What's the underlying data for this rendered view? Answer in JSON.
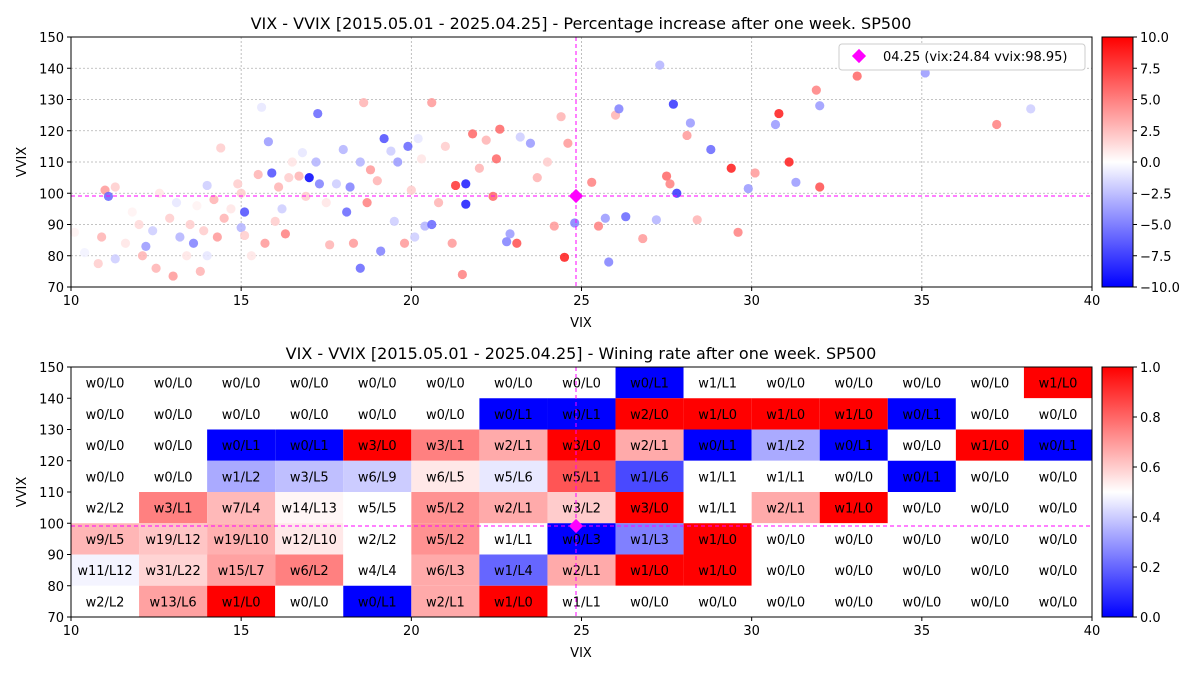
{
  "chart_data": [
    {
      "type": "scatter",
      "title": "VIX - VVIX [2015.05.01 - 2025.04.25]  - Percentage increase after one week. SP500",
      "xlabel": "VIX",
      "ylabel": "VVIX",
      "xlim": [
        10,
        40
      ],
      "ylim": [
        70,
        150
      ],
      "x_ticks": [
        "10",
        "15",
        "20",
        "25",
        "30",
        "35",
        "40"
      ],
      "y_ticks": [
        "70",
        "80",
        "90",
        "100",
        "110",
        "120",
        "130",
        "140",
        "150"
      ],
      "grid": true,
      "colorbar": {
        "range": [
          -10,
          10
        ],
        "ticks": [
          "10.0",
          "7.5",
          "5.0",
          "2.5",
          "0.0",
          "−2.5",
          "−5.0",
          "−7.5",
          "−10.0"
        ],
        "colormap": "bwr",
        "low_color": "#0000ff",
        "mid_color": "#ffffff",
        "high_color": "#ff0000"
      },
      "legend": {
        "placement": "top-right",
        "label": "04.25 (vix:24.84 vvix:98.95)"
      },
      "current_point": {
        "vix": 24.84,
        "vvix": 98.95,
        "color": "#ff00ff"
      },
      "points_sampled": [
        [
          10.1,
          87.5,
          0.5
        ],
        [
          10.4,
          81,
          -0.5
        ],
        [
          10.8,
          77.5,
          2
        ],
        [
          10.9,
          86,
          3
        ],
        [
          11,
          101,
          4
        ],
        [
          11.1,
          99,
          -6
        ],
        [
          11.3,
          79,
          -2
        ],
        [
          11.3,
          102,
          2
        ],
        [
          11.6,
          84,
          1
        ],
        [
          11.8,
          94,
          0.5
        ],
        [
          12,
          90,
          1.5
        ],
        [
          12.1,
          80,
          3
        ],
        [
          12.2,
          83,
          -4
        ],
        [
          12.4,
          88,
          -2
        ],
        [
          12.5,
          76,
          3
        ],
        [
          12.6,
          100,
          1
        ],
        [
          12.8,
          82,
          0
        ],
        [
          12.9,
          92,
          2
        ],
        [
          13,
          73.5,
          4
        ],
        [
          13.1,
          97,
          -1
        ],
        [
          13.2,
          86,
          -3
        ],
        [
          13.4,
          80,
          1
        ],
        [
          13.5,
          90,
          2
        ],
        [
          13.6,
          84,
          -5
        ],
        [
          13.7,
          96,
          0.5
        ],
        [
          13.8,
          75,
          3
        ],
        [
          13.9,
          88,
          2
        ],
        [
          14,
          80,
          -1
        ],
        [
          14,
          102.5,
          -2
        ],
        [
          14.2,
          98,
          3
        ],
        [
          14.3,
          86,
          4
        ],
        [
          14.4,
          114.5,
          2
        ],
        [
          14.5,
          92,
          3
        ],
        [
          14.7,
          95,
          1
        ],
        [
          14.8,
          82,
          0
        ],
        [
          14.9,
          103,
          2
        ],
        [
          15,
          89,
          -3
        ],
        [
          15,
          100,
          2
        ],
        [
          15.1,
          86.5,
          2
        ],
        [
          15.1,
          94,
          -7
        ],
        [
          15.3,
          80,
          1
        ],
        [
          15.5,
          106,
          3
        ],
        [
          15.6,
          127.5,
          -1
        ],
        [
          15.7,
          84,
          4
        ],
        [
          15.8,
          116.5,
          -4
        ],
        [
          15.9,
          106.5,
          -7
        ],
        [
          16,
          91,
          2
        ],
        [
          16.1,
          102,
          3
        ],
        [
          16.2,
          95,
          -2
        ],
        [
          16.3,
          87,
          5
        ],
        [
          16.4,
          105,
          2
        ],
        [
          16.5,
          110,
          1
        ],
        [
          16.7,
          105.5,
          3
        ],
        [
          16.8,
          113,
          -1
        ],
        [
          16.9,
          99,
          2
        ],
        [
          17,
          105,
          -10
        ],
        [
          17.1,
          86.5,
          0
        ],
        [
          17.2,
          110,
          -3
        ],
        [
          17.25,
          125.5,
          -6
        ],
        [
          17.3,
          103,
          -5
        ],
        [
          17.5,
          97,
          1
        ],
        [
          17.6,
          83.5,
          3
        ],
        [
          17.8,
          103,
          -2
        ],
        [
          18,
          114,
          -3
        ],
        [
          18.1,
          94,
          -6
        ],
        [
          18.2,
          102,
          -5
        ],
        [
          18.3,
          84,
          4
        ],
        [
          18.5,
          76,
          -6
        ],
        [
          18.5,
          110,
          -3
        ],
        [
          18.6,
          129,
          3
        ],
        [
          18.7,
          97,
          5
        ],
        [
          18.8,
          107.5,
          4
        ],
        [
          19,
          104,
          3
        ],
        [
          19.1,
          81.5,
          -5
        ],
        [
          19.2,
          117.5,
          -7
        ],
        [
          19.4,
          113.5,
          -2
        ],
        [
          19.5,
          91,
          -2
        ],
        [
          19.6,
          110,
          -4
        ],
        [
          19.8,
          84,
          4
        ],
        [
          19.9,
          115,
          -6
        ],
        [
          20,
          101,
          2
        ],
        [
          20.1,
          86,
          -2
        ],
        [
          20.2,
          117.5,
          -1
        ],
        [
          20.3,
          111,
          1
        ],
        [
          20.4,
          89.5,
          -3
        ],
        [
          20.6,
          90,
          -6
        ],
        [
          20.6,
          129,
          4
        ],
        [
          20.8,
          97,
          3
        ],
        [
          21,
          115,
          2
        ],
        [
          21.2,
          84,
          4
        ],
        [
          21.3,
          102.5,
          8
        ],
        [
          21.5,
          74,
          5
        ],
        [
          21.6,
          103,
          -9
        ],
        [
          21.6,
          96.5,
          -9
        ],
        [
          21.8,
          119,
          6
        ],
        [
          22,
          108,
          3
        ],
        [
          22.2,
          117,
          3
        ],
        [
          22.4,
          99,
          6
        ],
        [
          22.5,
          111,
          6
        ],
        [
          22.6,
          120.5,
          6
        ],
        [
          22.8,
          84.5,
          -5
        ],
        [
          22.9,
          87,
          -4
        ],
        [
          23.1,
          84,
          7
        ],
        [
          23.2,
          118,
          -2
        ],
        [
          23.5,
          116,
          -4
        ],
        [
          23.7,
          105,
          3
        ],
        [
          24,
          110,
          2
        ],
        [
          24.2,
          89.5,
          4
        ],
        [
          24.4,
          124.5,
          3
        ],
        [
          24.5,
          79.5,
          9
        ],
        [
          24.6,
          116,
          4
        ],
        [
          24.8,
          90.5,
          -5
        ],
        [
          25.3,
          103.5,
          5
        ],
        [
          25.5,
          89.5,
          5
        ],
        [
          25.7,
          92,
          -4
        ],
        [
          25.8,
          78,
          -5
        ],
        [
          26,
          125,
          3
        ],
        [
          26.1,
          127,
          -5
        ],
        [
          26.3,
          92.5,
          -6
        ],
        [
          26.8,
          85.5,
          4
        ],
        [
          27.2,
          91.5,
          -3
        ],
        [
          27.3,
          141,
          -3
        ],
        [
          27.5,
          105.5,
          6
        ],
        [
          27.6,
          103,
          5
        ],
        [
          27.7,
          128.5,
          -8
        ],
        [
          27.8,
          100,
          -8
        ],
        [
          28.1,
          118.5,
          4
        ],
        [
          28.2,
          122.5,
          -4
        ],
        [
          28.4,
          91.5,
          3
        ],
        [
          28.8,
          114,
          -6
        ],
        [
          29.4,
          108,
          9
        ],
        [
          29.6,
          87.5,
          5
        ],
        [
          29.9,
          101.5,
          -4
        ],
        [
          30.1,
          106.5,
          4
        ],
        [
          30.7,
          122,
          -4
        ],
        [
          30.8,
          125.5,
          9
        ],
        [
          31.1,
          110,
          9
        ],
        [
          31.3,
          103.5,
          -4
        ],
        [
          31.9,
          133,
          5
        ],
        [
          32,
          128,
          -4
        ],
        [
          32,
          102,
          7
        ],
        [
          33.1,
          137.5,
          6
        ],
        [
          35.1,
          138.5,
          -4
        ],
        [
          37.2,
          122,
          5
        ],
        [
          37.9,
          145.5,
          3
        ],
        [
          38.2,
          127,
          -2
        ]
      ]
    },
    {
      "type": "heatmap",
      "title": "VIX - VVIX [2015.05.01 - 2025.04.25]  - Wining rate after one week. SP500",
      "xlabel": "VIX",
      "ylabel": "VVIX",
      "xlim": [
        10,
        40
      ],
      "ylim": [
        70,
        150
      ],
      "x_ticks": [
        "10",
        "15",
        "20",
        "25",
        "30",
        "35",
        "40"
      ],
      "y_ticks": [
        "70",
        "80",
        "90",
        "100",
        "110",
        "120",
        "130",
        "140",
        "150"
      ],
      "x_bin_width": 2,
      "y_bin_width": 10,
      "colorbar": {
        "range": [
          0,
          1
        ],
        "ticks": [
          "1.0",
          "0.8",
          "0.6",
          "0.4",
          "0.2",
          "0.0"
        ],
        "colormap": "bwr",
        "low_color": "#0000ff",
        "mid_color": "#ffffff",
        "high_color": "#ff0000"
      },
      "current_point": {
        "vix": 24.84,
        "vvix": 98.95,
        "color": "#ff00ff"
      },
      "rows_top_to_bottom": [
        [
          "w0/L0",
          "w0/L0",
          "w0/L0",
          "w0/L0",
          "w0/L0",
          "w0/L0",
          "w0/L0",
          "w0/L0",
          "w0/L1",
          "w1/L1",
          "w0/L0",
          "w0/L0",
          "w0/L0",
          "w0/L0",
          "w1/L0"
        ],
        [
          "w0/L0",
          "w0/L0",
          "w0/L0",
          "w0/L0",
          "w0/L0",
          "w0/L0",
          "w0/L1",
          "w0/L1",
          "w2/L0",
          "w1/L0",
          "w1/L0",
          "w1/L0",
          "w0/L1",
          "w0/L0",
          "w0/L0"
        ],
        [
          "w0/L0",
          "w0/L0",
          "w0/L1",
          "w0/L1",
          "w3/L0",
          "w3/L1",
          "w2/L1",
          "w3/L0",
          "w2/L1",
          "w0/L1",
          "w1/L2",
          "w0/L1",
          "w0/L0",
          "w1/L0",
          "w0/L1"
        ],
        [
          "w0/L0",
          "w0/L0",
          "w1/L2",
          "w3/L5",
          "w6/L9",
          "w6/L5",
          "w5/L6",
          "w5/L1",
          "w1/L6",
          "w1/L1",
          "w1/L1",
          "w0/L0",
          "w0/L1",
          "w0/L0",
          "w0/L0"
        ],
        [
          "w2/L2",
          "w3/L1",
          "w7/L4",
          "w14/L13",
          "w5/L5",
          "w5/L2",
          "w2/L1",
          "w3/L2",
          "w3/L0",
          "w1/L1",
          "w2/L1",
          "w1/L0",
          "w0/L0",
          "w0/L0",
          "w0/L0"
        ],
        [
          "w9/L5",
          "w19/L12",
          "w19/L10",
          "w12/L10",
          "w2/L2",
          "w5/L2",
          "w1/L1",
          "w0/L3",
          "w1/L3",
          "w1/L0",
          "w0/L0",
          "w0/L0",
          "w0/L0",
          "w0/L0",
          "w0/L0"
        ],
        [
          "w11/L12",
          "w31/L22",
          "w15/L7",
          "w6/L2",
          "w4/L4",
          "w6/L3",
          "w1/L4",
          "w2/L1",
          "w1/L0",
          "w1/L0",
          "w0/L0",
          "w0/L0",
          "w0/L0",
          "w0/L0",
          "w0/L0"
        ],
        [
          "w2/L2",
          "w13/L6",
          "w1/L0",
          "w0/L0",
          "w0/L1",
          "w2/L1",
          "w1/L0",
          "w1/L1",
          "w0/L0",
          "w0/L0",
          "w0/L0",
          "w0/L0",
          "w0/L0",
          "w0/L0",
          "w0/L0"
        ]
      ]
    }
  ]
}
